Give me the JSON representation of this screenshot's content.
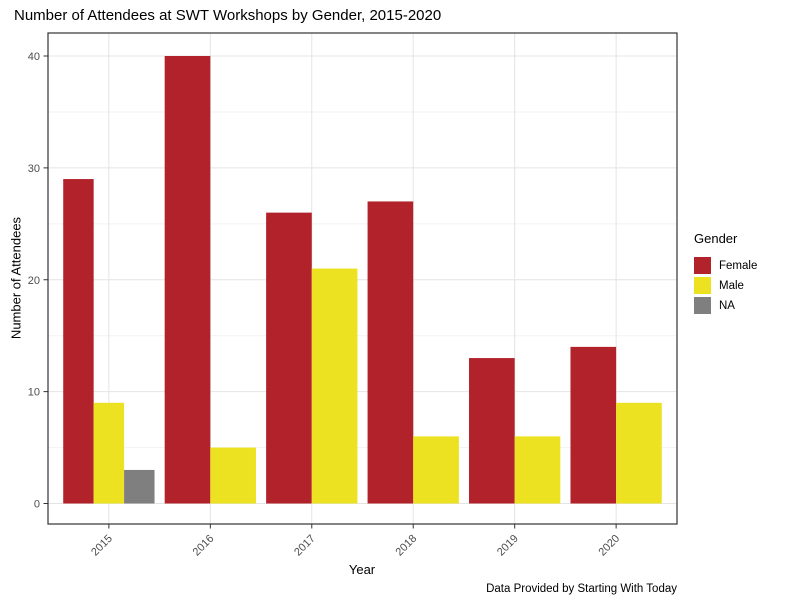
{
  "chart_data": {
    "type": "bar",
    "title": "Number of Attendees at SWT Workshops by Gender, 2015-2020",
    "xlabel": "Year",
    "ylabel": "Number of Attendees",
    "caption": "Data Provided by Starting With Today",
    "legend_title": "Gender",
    "legend_position": "right",
    "categories": [
      "2015",
      "2016",
      "2017",
      "2018",
      "2019",
      "2020"
    ],
    "series": [
      {
        "name": "Female",
        "color": "#B2222A",
        "values": [
          29,
          40,
          26,
          27,
          13,
          14
        ]
      },
      {
        "name": "Male",
        "color": "#EDE221",
        "values": [
          9,
          5,
          21,
          6,
          6,
          9
        ]
      },
      {
        "name": "NA",
        "color": "#7F7F7F",
        "values": [
          3,
          null,
          null,
          null,
          null,
          null
        ]
      }
    ],
    "ylim": [
      0,
      40
    ],
    "yticks": [
      0,
      10,
      20,
      30,
      40
    ],
    "yminor": [
      5,
      15,
      25,
      35
    ],
    "grid": true,
    "x_tick_angle": 45,
    "bar_dodge_fraction": 0.9,
    "colors": {
      "panel_border": "#333333",
      "grid_major": "#E4E4E4",
      "grid_minor": "#F2F2F2",
      "axis_text": "#4D4D4D",
      "tick": "#333333"
    }
  }
}
